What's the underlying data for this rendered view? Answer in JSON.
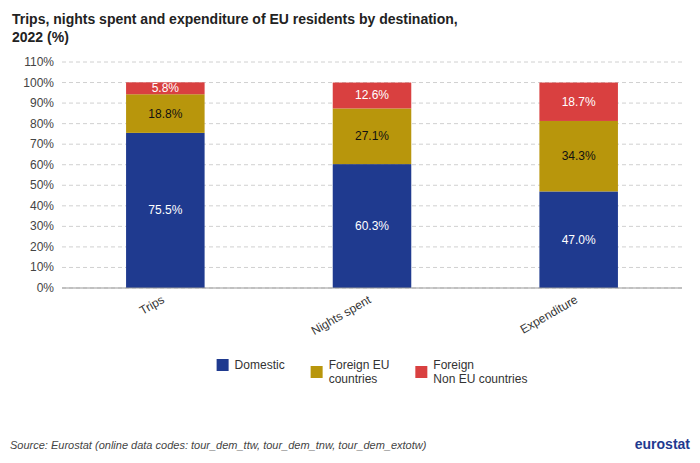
{
  "chart_data": {
    "type": "bar",
    "stacked": true,
    "title": "Trips, nights spent and expenditure of EU residents by destination,\n2022 (%)",
    "categories": [
      "Trips",
      "Nights spent",
      "Expenditure"
    ],
    "series": [
      {
        "name": "Domestic",
        "color": "#1f3a8f",
        "values": [
          75.5,
          60.3,
          47.0
        ],
        "value_labels": [
          "75.5%",
          "60.3%",
          "47.0%"
        ]
      },
      {
        "name": "Foreign EU\ncountries",
        "color": "#b8960c",
        "values": [
          18.8,
          27.1,
          34.3
        ],
        "value_labels": [
          "18.8%",
          "27.1%",
          "34.3%"
        ]
      },
      {
        "name": "Foreign\nNon EU countries",
        "color": "#d94040",
        "values": [
          5.8,
          12.6,
          18.7
        ],
        "value_labels": [
          "5.8%",
          "12.6%",
          "18.7%"
        ]
      }
    ],
    "ylim": [
      0,
      110
    ],
    "yticks": [
      {
        "value": 0,
        "label": "0%"
      },
      {
        "value": 10,
        "label": "10%"
      },
      {
        "value": 20,
        "label": "20%"
      },
      {
        "value": 30,
        "label": "30%"
      },
      {
        "value": 40,
        "label": "40%"
      },
      {
        "value": 50,
        "label": "50%"
      },
      {
        "value": 60,
        "label": "60%"
      },
      {
        "value": 70,
        "label": "70%"
      },
      {
        "value": 80,
        "label": "80%"
      },
      {
        "value": 90,
        "label": "90%"
      },
      {
        "value": 100,
        "label": "100%"
      },
      {
        "value": 110,
        "label": "110%"
      }
    ],
    "grid": true,
    "data_labels": true,
    "legend": "bottom",
    "annotations": [
      "Source: Eurostat (online data codes: tour_dem_ttw, tour_dem_tnw, tour_dem_extotw)",
      "eurostat"
    ]
  }
}
